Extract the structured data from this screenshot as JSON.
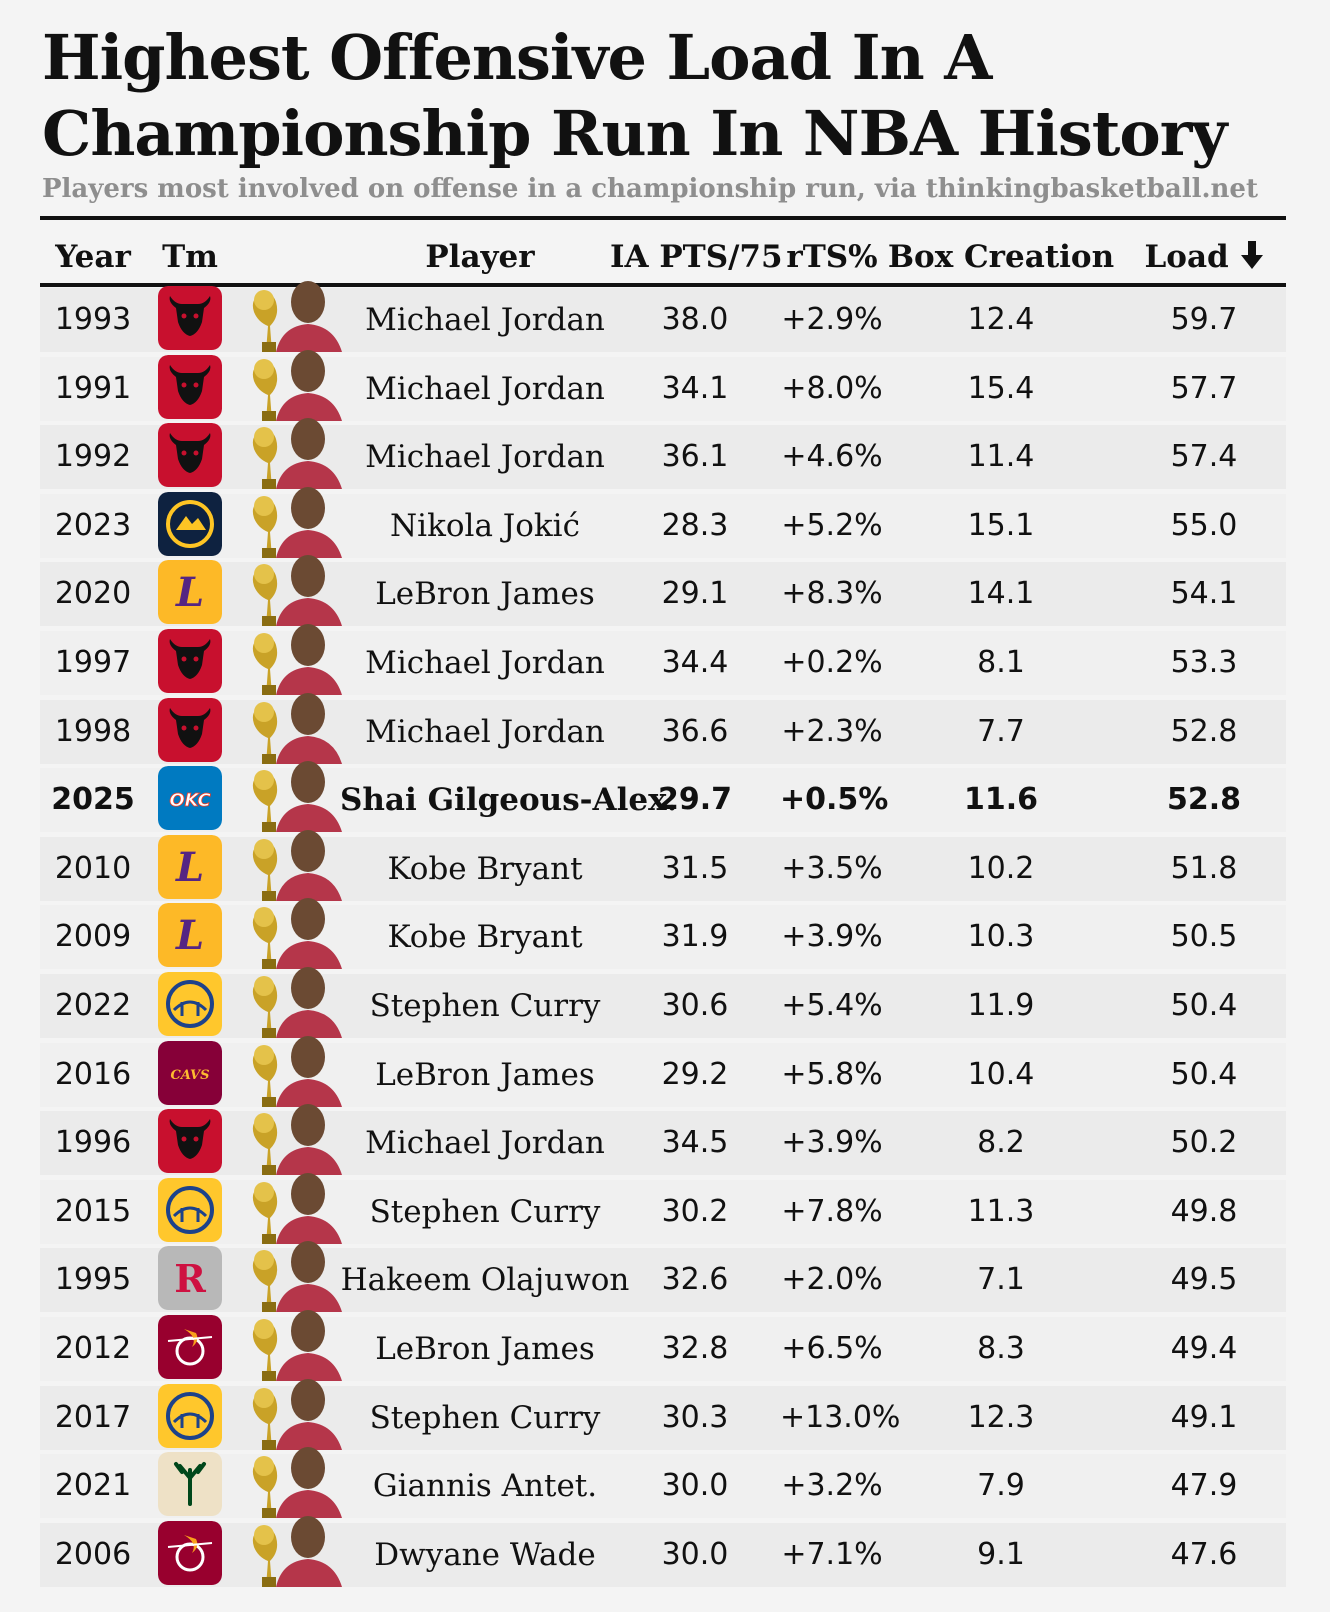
{
  "title": "Highest Offensive Load In A Championship Run In NBA History",
  "subtitle": "Players most involved on offense in a championship run, via thinkingbasketball.net",
  "columns": {
    "year": "Year",
    "team": "Tm",
    "player": "Player",
    "ia_pts": "IA PTS/75",
    "rts": "rTS%",
    "box": "Box Creation",
    "load": "Load",
    "sort_icon": "arrow-down-icon"
  },
  "team_colors": {
    "CHI": "#c8102e",
    "DEN": "#0e2240",
    "LAL": "#fdb927",
    "OKC": "#007ac1",
    "GSW": "#ffc72c",
    "CLE": "#860038",
    "HOU": "#b8b8b8",
    "MIA": "#98002e",
    "MIL": "#eee1c6"
  },
  "chart_data": {
    "type": "table",
    "title": "Highest Offensive Load In A Championship Run In NBA History",
    "subtitle": "Players most involved on offense in a championship run, via thinkingbasketball.net",
    "sort": "Load descending",
    "highlight_year": "2025",
    "rows": [
      {
        "year": "1993",
        "team": "CHI",
        "player": "Michael Jordan",
        "ia_pts": "38.0",
        "rts": "+2.9%",
        "box": "12.4",
        "load": "59.7"
      },
      {
        "year": "1991",
        "team": "CHI",
        "player": "Michael Jordan",
        "ia_pts": "34.1",
        "rts": "+8.0%",
        "box": "15.4",
        "load": "57.7"
      },
      {
        "year": "1992",
        "team": "CHI",
        "player": "Michael Jordan",
        "ia_pts": "36.1",
        "rts": "+4.6%",
        "box": "11.4",
        "load": "57.4"
      },
      {
        "year": "2023",
        "team": "DEN",
        "player": "Nikola Jokić",
        "ia_pts": "28.3",
        "rts": "+5.2%",
        "box": "15.1",
        "load": "55.0"
      },
      {
        "year": "2020",
        "team": "LAL",
        "player": "LeBron James",
        "ia_pts": "29.1",
        "rts": "+8.3%",
        "box": "14.1",
        "load": "54.1"
      },
      {
        "year": "1997",
        "team": "CHI",
        "player": "Michael Jordan",
        "ia_pts": "34.4",
        "rts": "+0.2%",
        "box": "8.1",
        "load": "53.3"
      },
      {
        "year": "1998",
        "team": "CHI",
        "player": "Michael Jordan",
        "ia_pts": "36.6",
        "rts": "+2.3%",
        "box": "7.7",
        "load": "52.8"
      },
      {
        "year": "2025",
        "team": "OKC",
        "player": "Shai Gilgeous-Alex.",
        "ia_pts": "29.7",
        "rts": "+0.5%",
        "box": "11.6",
        "load": "52.8",
        "bold": true
      },
      {
        "year": "2010",
        "team": "LAL",
        "player": "Kobe Bryant",
        "ia_pts": "31.5",
        "rts": "+3.5%",
        "box": "10.2",
        "load": "51.8"
      },
      {
        "year": "2009",
        "team": "LAL",
        "player": "Kobe Bryant",
        "ia_pts": "31.9",
        "rts": "+3.9%",
        "box": "10.3",
        "load": "50.5"
      },
      {
        "year": "2022",
        "team": "GSW",
        "player": "Stephen Curry",
        "ia_pts": "30.6",
        "rts": "+5.4%",
        "box": "11.9",
        "load": "50.4"
      },
      {
        "year": "2016",
        "team": "CLE",
        "player": "LeBron James",
        "ia_pts": "29.2",
        "rts": "+5.8%",
        "box": "10.4",
        "load": "50.4"
      },
      {
        "year": "1996",
        "team": "CHI",
        "player": "Michael Jordan",
        "ia_pts": "34.5",
        "rts": "+3.9%",
        "box": "8.2",
        "load": "50.2"
      },
      {
        "year": "2015",
        "team": "GSW",
        "player": "Stephen Curry",
        "ia_pts": "30.2",
        "rts": "+7.8%",
        "box": "11.3",
        "load": "49.8"
      },
      {
        "year": "1995",
        "team": "HOU",
        "player": "Hakeem Olajuwon",
        "ia_pts": "32.6",
        "rts": "+2.0%",
        "box": "7.1",
        "load": "49.5"
      },
      {
        "year": "2012",
        "team": "MIA",
        "player": "LeBron James",
        "ia_pts": "32.8",
        "rts": "+6.5%",
        "box": "8.3",
        "load": "49.4"
      },
      {
        "year": "2017",
        "team": "GSW",
        "player": "Stephen Curry",
        "ia_pts": "30.3",
        "rts": "+13.0%",
        "box": "12.3",
        "load": "49.1"
      },
      {
        "year": "2021",
        "team": "MIL",
        "player": "Giannis Antet.",
        "ia_pts": "30.0",
        "rts": "+3.2%",
        "box": "7.9",
        "load": "47.9"
      },
      {
        "year": "2006",
        "team": "MIA",
        "player": "Dwyane Wade",
        "ia_pts": "30.0",
        "rts": "+7.1%",
        "box": "9.1",
        "load": "47.6"
      }
    ]
  }
}
